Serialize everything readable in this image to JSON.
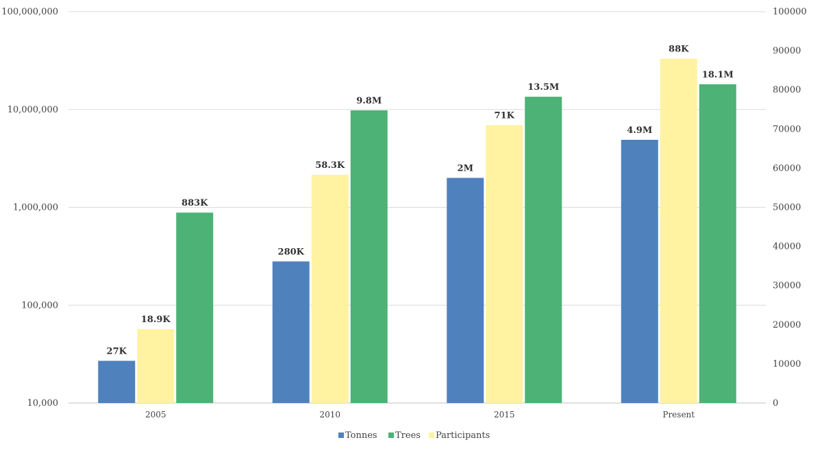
{
  "chart_data": {
    "type": "bar",
    "title": "",
    "categories": [
      "2005",
      "2010",
      "2015",
      "Present"
    ],
    "series": [
      {
        "name": "Tonnes",
        "axis": "left-log",
        "color": "#4f81bd",
        "values": [
          27000,
          280000,
          2000000,
          4900000
        ],
        "labels": [
          "27K",
          "280K",
          "2M",
          "4.9M"
        ]
      },
      {
        "name": "Participants",
        "axis": "right",
        "color": "#fff2a1",
        "values": [
          18900,
          58300,
          71000,
          88000
        ],
        "labels": [
          "18.9K",
          "58.3K",
          "71K",
          "88K"
        ]
      },
      {
        "name": "Trees",
        "axis": "left-log",
        "color": "#4cb276",
        "values": [
          883000,
          9800000,
          13500000,
          18100000
        ],
        "labels": [
          "883K",
          "9.8M",
          "13.5M",
          "18.1M"
        ]
      }
    ],
    "left_axis": {
      "scale": "log",
      "ylim": [
        10000,
        100000000
      ],
      "ticks": [
        10000,
        100000,
        1000000,
        10000000,
        100000000
      ],
      "tick_labels": [
        "10,000",
        "100,000",
        "1,000,000",
        "10,000,000",
        "100,000,000"
      ]
    },
    "right_axis": {
      "scale": "linear",
      "ylim": [
        0,
        100000
      ],
      "ticks": [
        0,
        10000,
        20000,
        30000,
        40000,
        50000,
        60000,
        70000,
        80000,
        90000,
        100000
      ],
      "tick_labels": [
        "0",
        "10000",
        "20000",
        "30000",
        "40000",
        "50000",
        "60000",
        "70000",
        "80000",
        "90000",
        "100000"
      ]
    },
    "legend": {
      "position": "bottom",
      "entries": [
        {
          "name": "Tonnes",
          "color": "#4f81bd"
        },
        {
          "name": "Trees",
          "color": "#4cb276"
        },
        {
          "name": "Participants",
          "color": "#fff2a1"
        }
      ]
    },
    "grid": true
  }
}
